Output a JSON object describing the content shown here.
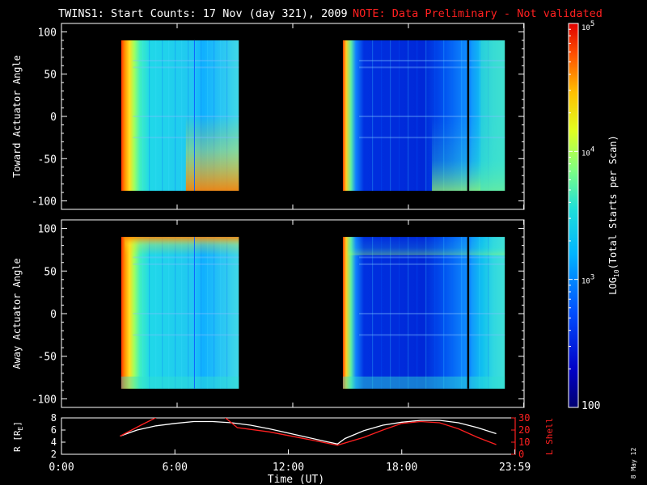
{
  "figure": {
    "title": "TWINS1: Start Counts: 17 Nov (day 321), 2009",
    "note": "NOTE: Data Preliminary - Not validated",
    "date_stamp": "8 May 12",
    "colors": {
      "background": "#000000",
      "axes": "#ffffff",
      "note": "#ff2020",
      "lshell": "#ff2020",
      "r": "#ffffff",
      "marker": "#000000"
    }
  },
  "chart_data": [
    {
      "type": "heatmap",
      "name": "toward",
      "ylabel": "Toward Actuator Angle",
      "xlim": [
        0,
        24
      ],
      "ylim": [
        -110,
        110
      ],
      "yticks": [
        -100,
        -50,
        0,
        50,
        100
      ],
      "data_time_ranges": [
        [
          3.1,
          9.2
        ],
        [
          14.6,
          23.0
        ]
      ],
      "angle_range": [
        -88,
        90
      ],
      "marker_time": 21.1
    },
    {
      "type": "heatmap",
      "name": "away",
      "ylabel": "Away Actuator Angle",
      "xlim": [
        0,
        24
      ],
      "ylim": [
        -110,
        110
      ],
      "yticks": [
        -100,
        -50,
        0,
        50,
        100
      ],
      "data_time_ranges": [
        [
          3.1,
          9.2
        ],
        [
          14.6,
          23.0
        ]
      ],
      "angle_range": [
        -88,
        90
      ],
      "marker_time": 21.1
    },
    {
      "type": "line",
      "name": "ephemeris",
      "xlabel": "Time (UT)",
      "xticks": [
        "0:00",
        "6:00",
        "12:00",
        "18:00",
        "23:59"
      ],
      "xtick_hours": [
        0,
        6,
        12,
        18,
        23.983
      ],
      "left_axis": {
        "label": "R [RE]",
        "label_main": "R [R",
        "label_sub": "E",
        "label_end": "]",
        "ylim": [
          2,
          8
        ],
        "ticks": [
          2,
          4,
          6,
          8
        ]
      },
      "right_axis": {
        "label": "L Shell",
        "ylim": [
          0,
          30
        ],
        "ticks": [
          0,
          10,
          20,
          30
        ]
      },
      "series": [
        {
          "name": "R [RE]",
          "axis": "left",
          "x": [
            3.1,
            4.0,
            5.0,
            6.0,
            7.0,
            8.0,
            9.0,
            10.0,
            11.0,
            12.0,
            13.0,
            14.0,
            14.6,
            15.0,
            16.0,
            17.0,
            18.0,
            19.0,
            20.0,
            21.0,
            22.0,
            23.0
          ],
          "y": [
            5.0,
            6.0,
            6.7,
            7.1,
            7.4,
            7.4,
            7.2,
            6.8,
            6.2,
            5.5,
            4.8,
            4.1,
            3.7,
            4.6,
            5.9,
            6.8,
            7.3,
            7.6,
            7.6,
            7.2,
            6.4,
            5.4
          ]
        },
        {
          "name": "L Shell",
          "axis": "right",
          "x": [
            3.1,
            4.2,
            5.1,
            8.6,
            9.3,
            11.0,
            13.0,
            14.6,
            16.0,
            17.0,
            18.0,
            19.0,
            20.0,
            21.0,
            22.0,
            23.0
          ],
          "y": [
            15,
            24,
            31,
            31,
            22,
            18.5,
            12.5,
            7.5,
            14,
            20,
            25.5,
            27,
            26,
            21,
            14,
            8
          ]
        }
      ]
    }
  ],
  "colorbar": {
    "label_pre": "LOG",
    "label_sub": "10",
    "label_post": "(Total Starts per Scan)",
    "scale": "log",
    "range": [
      100,
      100000
    ],
    "ticks": [
      {
        "value": 100,
        "base": "100",
        "exp": ""
      },
      {
        "value": 1000,
        "base": "10",
        "exp": "3"
      },
      {
        "value": 10000,
        "base": "10",
        "exp": "4"
      },
      {
        "value": 100000,
        "base": "10",
        "exp": "5"
      }
    ]
  }
}
